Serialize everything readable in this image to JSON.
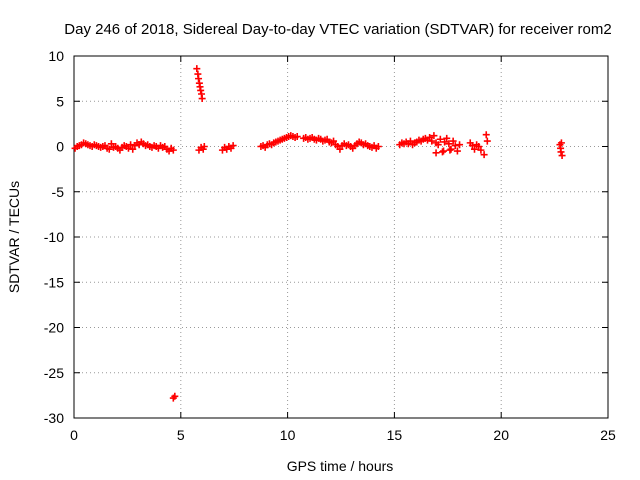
{
  "chart_data": {
    "type": "scatter",
    "title": "Day 246 of 2018, Sidereal Day-to-day VTEC variation (SDTVAR) for receiver rom2",
    "xlabel": "GPS time / hours",
    "ylabel": "SDTVAR / TECUs",
    "xlim": [
      0,
      25
    ],
    "ylim": [
      -30,
      10
    ],
    "xticks": [
      0,
      5,
      10,
      15,
      20,
      25
    ],
    "yticks": [
      -30,
      -25,
      -20,
      -15,
      -10,
      -5,
      0,
      5,
      10
    ],
    "grid": true,
    "marker": "+",
    "color": "#ff0000",
    "series": [
      {
        "name": "SDTVAR",
        "points": [
          [
            0.05,
            -0.2
          ],
          [
            0.15,
            0.0
          ],
          [
            0.25,
            0.1
          ],
          [
            0.35,
            0.2
          ],
          [
            0.45,
            0.4
          ],
          [
            0.55,
            0.3
          ],
          [
            0.65,
            0.2
          ],
          [
            0.75,
            0.1
          ],
          [
            0.85,
            0.0
          ],
          [
            0.95,
            0.2
          ],
          [
            1.05,
            0.1
          ],
          [
            1.15,
            0.0
          ],
          [
            1.25,
            -0.1
          ],
          [
            1.35,
            0.0
          ],
          [
            1.45,
            0.1
          ],
          [
            1.55,
            -0.2
          ],
          [
            1.65,
            -0.3
          ],
          [
            1.75,
            0.3
          ],
          [
            1.85,
            -0.1
          ],
          [
            1.95,
            0.0
          ],
          [
            2.05,
            -0.2
          ],
          [
            2.15,
            -0.4
          ],
          [
            2.25,
            -0.1
          ],
          [
            2.35,
            0.1
          ],
          [
            2.45,
            0.0
          ],
          [
            2.55,
            -0.2
          ],
          [
            2.65,
            0.2
          ],
          [
            2.75,
            -0.3
          ],
          [
            2.85,
            0.1
          ],
          [
            2.95,
            0.4
          ],
          [
            3.05,
            0.2
          ],
          [
            3.15,
            0.5
          ],
          [
            3.25,
            0.3
          ],
          [
            3.35,
            0.1
          ],
          [
            3.45,
            0.2
          ],
          [
            3.55,
            0.0
          ],
          [
            3.65,
            -0.1
          ],
          [
            3.75,
            0.1
          ],
          [
            3.85,
            0.0
          ],
          [
            3.95,
            -0.2
          ],
          [
            4.05,
            0.1
          ],
          [
            4.15,
            -0.1
          ],
          [
            4.25,
            0.0
          ],
          [
            4.35,
            -0.3
          ],
          [
            4.45,
            -0.5
          ],
          [
            4.55,
            -0.2
          ],
          [
            4.65,
            -0.4
          ],
          [
            4.65,
            -27.8
          ],
          [
            4.72,
            -27.6
          ],
          [
            5.75,
            8.6
          ],
          [
            5.8,
            8.0
          ],
          [
            5.83,
            7.5
          ],
          [
            5.87,
            7.0
          ],
          [
            5.9,
            6.6
          ],
          [
            5.93,
            6.2
          ],
          [
            5.97,
            5.8
          ],
          [
            6.0,
            5.3
          ],
          [
            5.85,
            -0.4
          ],
          [
            5.95,
            -0.1
          ],
          [
            6.05,
            -0.3
          ],
          [
            6.1,
            0.0
          ],
          [
            6.95,
            -0.4
          ],
          [
            7.05,
            -0.1
          ],
          [
            7.15,
            -0.3
          ],
          [
            7.25,
            0.0
          ],
          [
            7.35,
            -0.2
          ],
          [
            7.45,
            0.1
          ],
          [
            8.75,
            0.0
          ],
          [
            8.85,
            0.1
          ],
          [
            8.95,
            -0.1
          ],
          [
            9.05,
            0.2
          ],
          [
            9.15,
            0.3
          ],
          [
            9.25,
            0.2
          ],
          [
            9.35,
            0.4
          ],
          [
            9.45,
            0.5
          ],
          [
            9.55,
            0.6
          ],
          [
            9.65,
            0.7
          ],
          [
            9.75,
            0.8
          ],
          [
            9.85,
            0.9
          ],
          [
            9.95,
            1.0
          ],
          [
            10.05,
            1.1
          ],
          [
            10.15,
            1.2
          ],
          [
            10.25,
            1.1
          ],
          [
            10.35,
            1.0
          ],
          [
            10.45,
            1.1
          ],
          [
            10.75,
            0.9
          ],
          [
            10.85,
            1.0
          ],
          [
            10.95,
            0.8
          ],
          [
            11.05,
            0.9
          ],
          [
            11.15,
            1.0
          ],
          [
            11.25,
            0.8
          ],
          [
            11.35,
            0.7
          ],
          [
            11.45,
            0.9
          ],
          [
            11.55,
            0.8
          ],
          [
            11.65,
            0.6
          ],
          [
            11.75,
            0.7
          ],
          [
            11.85,
            0.8
          ],
          [
            11.95,
            0.5
          ],
          [
            12.05,
            0.4
          ],
          [
            12.15,
            0.6
          ],
          [
            12.25,
            0.2
          ],
          [
            12.35,
            0.0
          ],
          [
            12.45,
            -0.3
          ],
          [
            12.55,
            0.1
          ],
          [
            12.65,
            0.3
          ],
          [
            12.75,
            0.1
          ],
          [
            12.85,
            0.2
          ],
          [
            12.95,
            0.0
          ],
          [
            13.05,
            -0.2
          ],
          [
            13.15,
            0.1
          ],
          [
            13.25,
            0.3
          ],
          [
            13.35,
            0.5
          ],
          [
            13.45,
            0.4
          ],
          [
            13.55,
            0.2
          ],
          [
            13.65,
            0.3
          ],
          [
            13.75,
            0.1
          ],
          [
            13.85,
            0.0
          ],
          [
            13.95,
            -0.1
          ],
          [
            14.05,
            0.1
          ],
          [
            14.15,
            -0.2
          ],
          [
            14.25,
            0.0
          ],
          [
            15.25,
            0.2
          ],
          [
            15.35,
            0.4
          ],
          [
            15.45,
            0.3
          ],
          [
            15.55,
            0.5
          ],
          [
            15.65,
            0.3
          ],
          [
            15.75,
            0.6
          ],
          [
            15.85,
            0.2
          ],
          [
            15.95,
            0.4
          ],
          [
            16.05,
            0.5
          ],
          [
            16.15,
            0.7
          ],
          [
            16.25,
            0.6
          ],
          [
            16.35,
            0.8
          ],
          [
            16.45,
            0.9
          ],
          [
            16.55,
            0.7
          ],
          [
            16.65,
            1.0
          ],
          [
            16.75,
            0.6
          ],
          [
            16.85,
            1.2
          ],
          [
            16.95,
            0.4
          ],
          [
            17.05,
            0.2
          ],
          [
            17.15,
            0.8
          ],
          [
            17.25,
            -0.6
          ],
          [
            17.35,
            0.5
          ],
          [
            17.45,
            0.9
          ],
          [
            17.55,
            0.3
          ],
          [
            17.65,
            -0.3
          ],
          [
            17.75,
            0.6
          ],
          [
            17.85,
            0.1
          ],
          [
            17.95,
            -0.5
          ],
          [
            18.05,
            0.2
          ],
          [
            16.95,
            -0.7
          ],
          [
            17.3,
            -0.5
          ],
          [
            17.6,
            -0.4
          ],
          [
            18.55,
            0.4
          ],
          [
            18.65,
            0.1
          ],
          [
            18.75,
            -0.3
          ],
          [
            18.85,
            0.2
          ],
          [
            18.95,
            0.0
          ],
          [
            19.05,
            -0.4
          ],
          [
            19.2,
            -0.9
          ],
          [
            19.3,
            1.3
          ],
          [
            19.35,
            0.6
          ],
          [
            22.75,
            0.2
          ],
          [
            22.8,
            -0.6
          ],
          [
            22.85,
            -1.0
          ],
          [
            22.78,
            -0.2
          ],
          [
            22.82,
            0.4
          ]
        ]
      }
    ]
  }
}
